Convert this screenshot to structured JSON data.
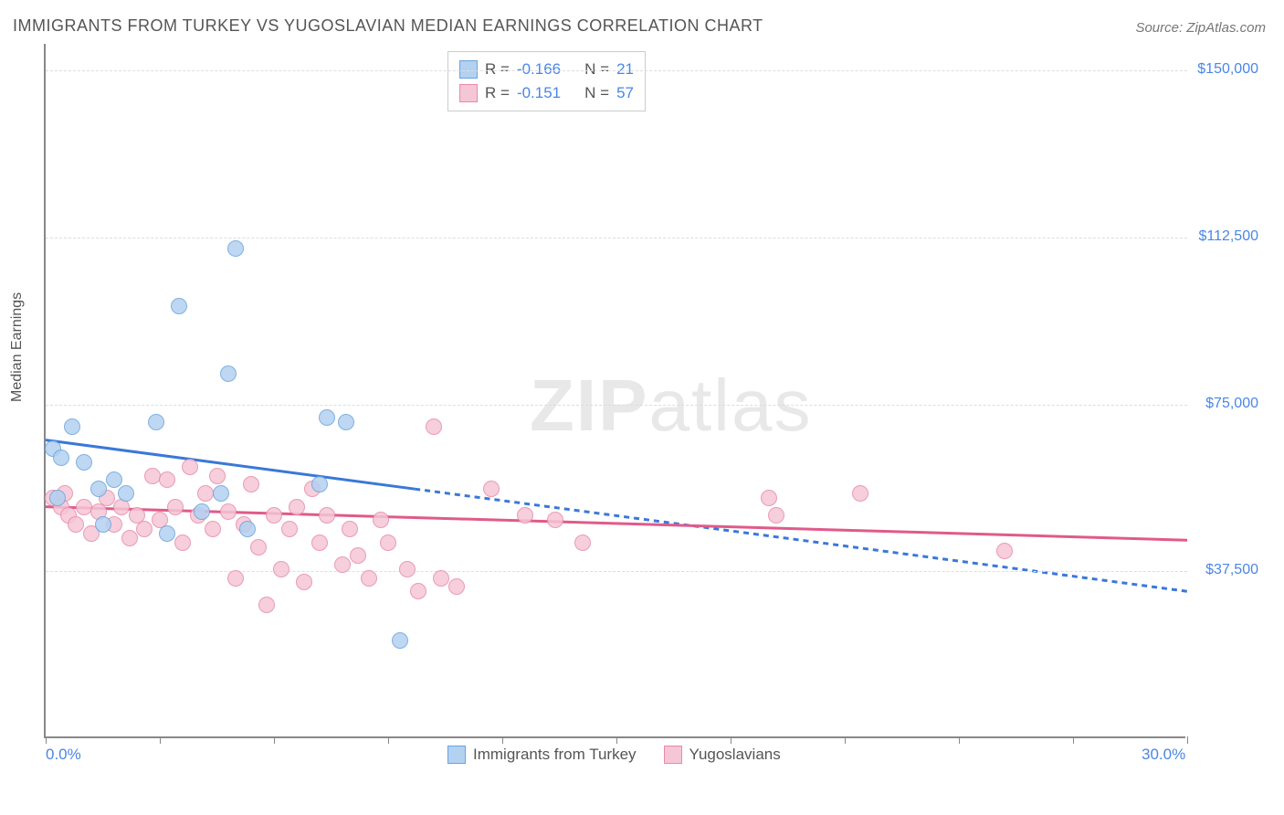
{
  "title": "IMMIGRANTS FROM TURKEY VS YUGOSLAVIAN MEDIAN EARNINGS CORRELATION CHART",
  "source": "Source: ZipAtlas.com",
  "ylabel": "Median Earnings",
  "watermark_a": "ZIP",
  "watermark_b": "atlas",
  "chart": {
    "type": "scatter",
    "background_color": "#ffffff",
    "grid_color": "#dddddd",
    "axis_color": "#888888",
    "label_color": "#4a86e8",
    "text_color": "#555555",
    "marker_radius": 9,
    "line_width": 3,
    "dash_pattern": "6,5",
    "xlim": [
      0,
      30
    ],
    "ylim": [
      0,
      156000
    ],
    "xticks": [
      0,
      3,
      6,
      9,
      12,
      15,
      18,
      21,
      24,
      27,
      30
    ],
    "xaxis_labels": [
      {
        "pos": 0,
        "text": "0.0%"
      },
      {
        "pos": 30,
        "text": "30.0%"
      }
    ],
    "yticks": [
      {
        "v": 37500,
        "label": "$37,500"
      },
      {
        "v": 75000,
        "label": "$75,000"
      },
      {
        "v": 112500,
        "label": "$112,500"
      },
      {
        "v": 150000,
        "label": "$150,000"
      }
    ],
    "series": [
      {
        "name": "Immigrants from Turkey",
        "marker_fill": "#b3d1f0",
        "marker_stroke": "#6aa3de",
        "line_color": "#3a78d8",
        "r": "-0.166",
        "n": "21",
        "trend_solid": {
          "x1": 0,
          "y1": 67000,
          "x2": 9.7,
          "y2": 56000
        },
        "trend_dash": {
          "x1": 9.7,
          "y1": 56000,
          "x2": 30,
          "y2": 33000
        },
        "points": [
          {
            "x": 0.2,
            "y": 65000
          },
          {
            "x": 0.4,
            "y": 63000
          },
          {
            "x": 0.3,
            "y": 54000
          },
          {
            "x": 0.7,
            "y": 70000
          },
          {
            "x": 1.0,
            "y": 62000
          },
          {
            "x": 1.4,
            "y": 56000
          },
          {
            "x": 1.5,
            "y": 48000
          },
          {
            "x": 1.8,
            "y": 58000
          },
          {
            "x": 2.1,
            "y": 55000
          },
          {
            "x": 2.9,
            "y": 71000
          },
          {
            "x": 3.2,
            "y": 46000
          },
          {
            "x": 3.5,
            "y": 97000
          },
          {
            "x": 4.1,
            "y": 51000
          },
          {
            "x": 4.6,
            "y": 55000
          },
          {
            "x": 4.8,
            "y": 82000
          },
          {
            "x": 5.0,
            "y": 110000
          },
          {
            "x": 5.3,
            "y": 47000
          },
          {
            "x": 7.4,
            "y": 72000
          },
          {
            "x": 7.9,
            "y": 71000
          },
          {
            "x": 7.2,
            "y": 57000
          },
          {
            "x": 9.3,
            "y": 22000
          }
        ]
      },
      {
        "name": "Yugoslavians",
        "marker_fill": "#f5c6d6",
        "marker_stroke": "#e88aa8",
        "line_color": "#e05a8a",
        "r": "-0.151",
        "n": "57",
        "trend_solid": {
          "x1": 0,
          "y1": 52000,
          "x2": 30,
          "y2": 44500
        },
        "trend_dash": null,
        "points": [
          {
            "x": 0.2,
            "y": 54000
          },
          {
            "x": 0.4,
            "y": 52000
          },
          {
            "x": 0.5,
            "y": 55000
          },
          {
            "x": 0.6,
            "y": 50000
          },
          {
            "x": 0.8,
            "y": 48000
          },
          {
            "x": 1.0,
            "y": 52000
          },
          {
            "x": 1.2,
            "y": 46000
          },
          {
            "x": 1.4,
            "y": 51000
          },
          {
            "x": 1.6,
            "y": 54000
          },
          {
            "x": 1.8,
            "y": 48000
          },
          {
            "x": 2.0,
            "y": 52000
          },
          {
            "x": 2.2,
            "y": 45000
          },
          {
            "x": 2.4,
            "y": 50000
          },
          {
            "x": 2.6,
            "y": 47000
          },
          {
            "x": 2.8,
            "y": 59000
          },
          {
            "x": 3.0,
            "y": 49000
          },
          {
            "x": 3.2,
            "y": 58000
          },
          {
            "x": 3.4,
            "y": 52000
          },
          {
            "x": 3.6,
            "y": 44000
          },
          {
            "x": 3.8,
            "y": 61000
          },
          {
            "x": 4.0,
            "y": 50000
          },
          {
            "x": 4.2,
            "y": 55000
          },
          {
            "x": 4.4,
            "y": 47000
          },
          {
            "x": 4.5,
            "y": 59000
          },
          {
            "x": 4.8,
            "y": 51000
          },
          {
            "x": 5.0,
            "y": 36000
          },
          {
            "x": 5.2,
            "y": 48000
          },
          {
            "x": 5.4,
            "y": 57000
          },
          {
            "x": 5.6,
            "y": 43000
          },
          {
            "x": 5.8,
            "y": 30000
          },
          {
            "x": 6.0,
            "y": 50000
          },
          {
            "x": 6.2,
            "y": 38000
          },
          {
            "x": 6.4,
            "y": 47000
          },
          {
            "x": 6.6,
            "y": 52000
          },
          {
            "x": 6.8,
            "y": 35000
          },
          {
            "x": 7.0,
            "y": 56000
          },
          {
            "x": 7.2,
            "y": 44000
          },
          {
            "x": 7.4,
            "y": 50000
          },
          {
            "x": 7.8,
            "y": 39000
          },
          {
            "x": 8.0,
            "y": 47000
          },
          {
            "x": 8.2,
            "y": 41000
          },
          {
            "x": 8.5,
            "y": 36000
          },
          {
            "x": 8.8,
            "y": 49000
          },
          {
            "x": 9.0,
            "y": 44000
          },
          {
            "x": 9.5,
            "y": 38000
          },
          {
            "x": 9.8,
            "y": 33000
          },
          {
            "x": 10.2,
            "y": 70000
          },
          {
            "x": 10.4,
            "y": 36000
          },
          {
            "x": 10.8,
            "y": 34000
          },
          {
            "x": 11.7,
            "y": 56000
          },
          {
            "x": 12.6,
            "y": 50000
          },
          {
            "x": 13.4,
            "y": 49000
          },
          {
            "x": 14.1,
            "y": 44000
          },
          {
            "x": 19.0,
            "y": 54000
          },
          {
            "x": 19.2,
            "y": 50000
          },
          {
            "x": 21.4,
            "y": 55000
          },
          {
            "x": 25.2,
            "y": 42000
          }
        ]
      }
    ]
  }
}
